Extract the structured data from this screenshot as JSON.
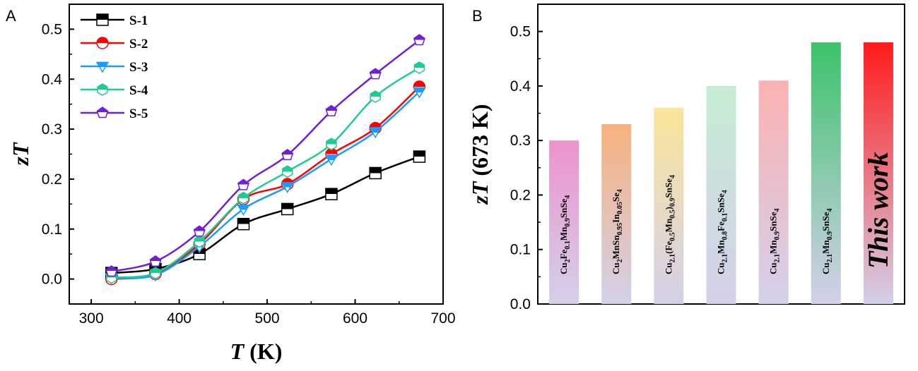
{
  "panels": {
    "a": "A",
    "b": "B"
  },
  "chart_data": [
    {
      "type": "line",
      "xlabel": {
        "italic": "T",
        "rest": " (K)"
      },
      "ylabel": {
        "italic": "zT",
        "rest": ""
      },
      "xlim": [
        275,
        700
      ],
      "ylim": [
        -0.05,
        0.55
      ],
      "xticks": [
        300,
        400,
        500,
        600,
        700
      ],
      "yticks": [
        0.0,
        0.1,
        0.2,
        0.3,
        0.4,
        0.5
      ],
      "legend_position": "top-left",
      "x": [
        323,
        373,
        423,
        473,
        523,
        573,
        623,
        673
      ],
      "series": [
        {
          "name": "S-1",
          "color": "#000000",
          "marker": "square",
          "values": [
            0.012,
            0.02,
            0.05,
            0.11,
            0.14,
            0.17,
            0.212,
            0.245
          ]
        },
        {
          "name": "S-2",
          "color": "#ff0000",
          "marker": "circle",
          "values": [
            0.0,
            0.01,
            0.07,
            0.16,
            0.19,
            0.25,
            0.302,
            0.385
          ]
        },
        {
          "name": "S-3",
          "color": "#1a9cff",
          "marker": "triangle-down",
          "values": [
            0.002,
            0.008,
            0.065,
            0.14,
            0.185,
            0.24,
            0.295,
            0.375
          ]
        },
        {
          "name": "S-4",
          "color": "#1fcc8f",
          "marker": "hexagon",
          "values": [
            0.003,
            0.012,
            0.075,
            0.162,
            0.215,
            0.27,
            0.365,
            0.423
          ]
        },
        {
          "name": "S-5",
          "color": "#6f1fd8",
          "marker": "pentagon",
          "values": [
            0.015,
            0.035,
            0.095,
            0.188,
            0.248,
            0.336,
            0.41,
            0.478
          ]
        }
      ]
    },
    {
      "type": "bar",
      "ylabel": {
        "italic": "zT",
        "rest": " (673 K)"
      },
      "ylim": [
        0.0,
        0.55
      ],
      "yticks": [
        0.0,
        0.1,
        0.2,
        0.3,
        0.4,
        0.5
      ],
      "categories": [
        "Cu2Fe0.1Mn0.9SnSe4",
        "Cu2MnSn0.95In0.05Se4",
        "Cu2.1(Fe0.5Mn0.5)0.9SnSe4",
        "Cu2.1Mn0.8Fe0.1SnSe4",
        "Cu2.1Mn0.9SnSe4",
        "Cu2.1Mn0.9SnSe4",
        "This work"
      ],
      "values": [
        0.3,
        0.33,
        0.36,
        0.4,
        0.41,
        0.48,
        0.48
      ],
      "bar_colors": [
        "#ec93cc",
        "#f6b27e",
        "#fbe59a",
        "#c5ecd3",
        "#fbb2b2",
        "#3cc36b",
        "#ff1a1a"
      ],
      "bar_base_color": "#d4d0ea"
    }
  ]
}
